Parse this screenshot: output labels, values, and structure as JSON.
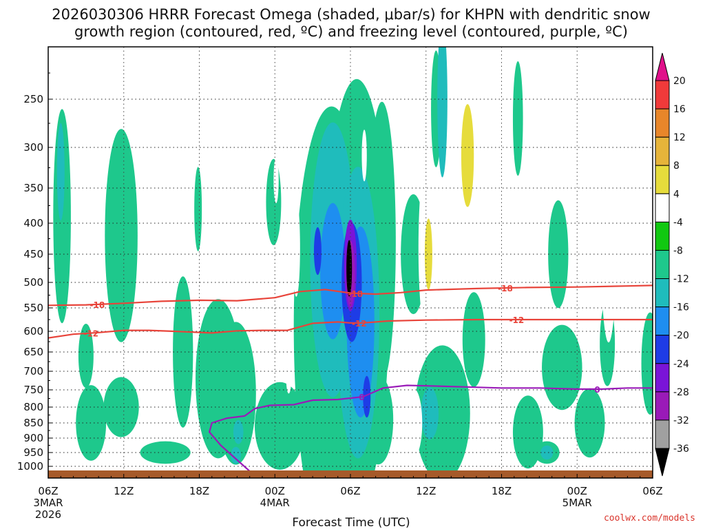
{
  "chart_data": {
    "type": "time-height-cross-section",
    "title_line1": "2026030306 HRRR Forecast Omega (shaded, μbar/s) for KHPN with dendritic snow",
    "title_line2": "growth region (contoured, red, ºC) and freezing level (contoured, purple, ºC)",
    "xlabel": "Forecast Time (UTC)",
    "ylabel": "",
    "credit": "coolwx.com/models",
    "x_ticks": [
      {
        "hour": 0,
        "label": "06Z",
        "date_line1": "3MAR",
        "date_line2": "2026"
      },
      {
        "hour": 6,
        "label": "12Z"
      },
      {
        "hour": 12,
        "label": "18Z"
      },
      {
        "hour": 18,
        "label": "00Z",
        "date_line1": "4MAR"
      },
      {
        "hour": 24,
        "label": "06Z"
      },
      {
        "hour": 30,
        "label": "12Z"
      },
      {
        "hour": 36,
        "label": "18Z"
      },
      {
        "hour": 42,
        "label": "00Z",
        "date_line1": "5MAR"
      },
      {
        "hour": 48,
        "label": "06Z"
      }
    ],
    "x_range_hours": [
      0,
      48
    ],
    "y_ticks_hpa": [
      250,
      300,
      350,
      400,
      450,
      500,
      550,
      600,
      650,
      700,
      750,
      800,
      850,
      900,
      950,
      1000
    ],
    "y_range_hpa": [
      200,
      1025
    ],
    "colorbar": {
      "levels": [
        20,
        16,
        12,
        8,
        4,
        -4,
        -8,
        -12,
        -16,
        -20,
        -24,
        -28,
        -32,
        -36
      ],
      "colors": [
        "#e0108a",
        "#f03a3a",
        "#e8862a",
        "#e6b43a",
        "#e6dc3c",
        "#ffffff",
        "#11c811",
        "#1ec88c",
        "#1fbcbc",
        "#1e8ef0",
        "#1e3ce6",
        "#7a14d8",
        "#9a1ab8",
        "#a0a0a0",
        "#000000"
      ]
    },
    "contours": [
      {
        "name": "-18",
        "color": "#e8443a",
        "label": "-18",
        "points": [
          [
            0,
            545
          ],
          [
            3,
            544
          ],
          [
            6,
            541
          ],
          [
            9,
            537
          ],
          [
            12,
            535
          ],
          [
            15,
            536
          ],
          [
            18,
            530
          ],
          [
            20,
            518
          ],
          [
            22,
            514
          ],
          [
            24,
            521
          ],
          [
            26,
            523
          ],
          [
            28,
            520
          ],
          [
            30,
            515
          ],
          [
            34,
            512
          ],
          [
            38,
            510
          ],
          [
            42,
            509
          ],
          [
            46,
            507
          ],
          [
            48,
            506
          ]
        ],
        "label_hours": [
          3.9,
          24.4,
          36.3
        ]
      },
      {
        "name": "-12",
        "color": "#e8443a",
        "label": "-12",
        "points": [
          [
            0,
            616
          ],
          [
            2,
            607
          ],
          [
            4,
            603
          ],
          [
            6,
            598
          ],
          [
            8,
            598
          ],
          [
            10,
            600
          ],
          [
            13,
            604
          ],
          [
            15,
            599
          ],
          [
            17,
            598
          ],
          [
            19,
            598
          ],
          [
            21,
            583
          ],
          [
            23,
            580
          ],
          [
            24,
            582
          ],
          [
            25,
            582
          ],
          [
            27,
            578
          ],
          [
            30,
            576
          ],
          [
            34,
            575
          ],
          [
            38,
            575
          ],
          [
            42,
            575
          ],
          [
            46,
            575
          ],
          [
            48,
            575
          ]
        ],
        "label_hours": [
          3.4,
          24.7,
          37.2
        ]
      },
      {
        "name": "0",
        "color": "#9a1ab8",
        "label": "0",
        "points": [
          [
            16.4,
            1020
          ],
          [
            15.2,
            985
          ],
          [
            13.7,
            925
          ],
          [
            12.8,
            880
          ],
          [
            13.0,
            850
          ],
          [
            14.2,
            835
          ],
          [
            15.6,
            828
          ],
          [
            16.4,
            805
          ],
          [
            17.6,
            795
          ],
          [
            19.5,
            793
          ],
          [
            21.0,
            780
          ],
          [
            23.0,
            778
          ],
          [
            25.0,
            770
          ],
          [
            26.6,
            745
          ],
          [
            28.5,
            738
          ],
          [
            31,
            740
          ],
          [
            33,
            742
          ],
          [
            36,
            745
          ],
          [
            39,
            745
          ],
          [
            42,
            748
          ],
          [
            44,
            748
          ],
          [
            46,
            745
          ],
          [
            48,
            745
          ]
        ],
        "label_hours": [
          24.9,
          43.6
        ]
      }
    ],
    "omega_regions": [
      {
        "level": "-8",
        "cx": 1.1,
        "cy": 390,
        "rx": 0.7,
        "ry": 150
      },
      {
        "level": "-8",
        "cx": 3.0,
        "cy": 660,
        "rx": 0.6,
        "ry": 80
      },
      {
        "level": "-8",
        "cx": 3.4,
        "cy": 850,
        "rx": 1.2,
        "ry": 120
      },
      {
        "level": "-8",
        "cx": 5.8,
        "cy": 420,
        "rx": 1.3,
        "ry": 160
      },
      {
        "level": "-8",
        "cx": 5.8,
        "cy": 800,
        "rx": 1.4,
        "ry": 90
      },
      {
        "level": "-8",
        "cx": 9.3,
        "cy": 950,
        "rx": 2.0,
        "ry": 40
      },
      {
        "level": "-8",
        "cx": 11.9,
        "cy": 380,
        "rx": 0.3,
        "ry": 60
      },
      {
        "level": "-8",
        "cx": 10.7,
        "cy": 650,
        "rx": 0.8,
        "ry": 180
      },
      {
        "level": "-8",
        "cx": 13.5,
        "cy": 720,
        "rx": 1.8,
        "ry": 210
      },
      {
        "level": "-8",
        "cx": 14.9,
        "cy": 760,
        "rx": 1.6,
        "ry": 200
      },
      {
        "level": "-8",
        "cx": 17.9,
        "cy": 370,
        "rx": 0.6,
        "ry": 60
      },
      {
        "level": "-8",
        "cx": 18.4,
        "cy": 860,
        "rx": 2.0,
        "ry": 140
      },
      {
        "level": "-8",
        "cx": 22.5,
        "cy": 590,
        "rx": 3.0,
        "ry": 410
      },
      {
        "level": "-8",
        "cx": 24.5,
        "cy": 520,
        "rx": 2.6,
        "ry": 360
      },
      {
        "level": "-8",
        "cx": 26.5,
        "cy": 430,
        "rx": 1.1,
        "ry": 210
      },
      {
        "level": "-8",
        "cx": 26.2,
        "cy": 840,
        "rx": 1.2,
        "ry": 140
      },
      {
        "level": "-8",
        "cx": 29.0,
        "cy": 450,
        "rx": 1.0,
        "ry": 100
      },
      {
        "level": "-8",
        "cx": 30.8,
        "cy": 260,
        "rx": 0.4,
        "ry": 60
      },
      {
        "level": "-8",
        "cx": 31.3,
        "cy": 820,
        "rx": 2.2,
        "ry": 200
      },
      {
        "level": "-8",
        "cx": 33.8,
        "cy": 620,
        "rx": 0.9,
        "ry": 110
      },
      {
        "level": "-8",
        "cx": 37.3,
        "cy": 270,
        "rx": 0.4,
        "ry": 60
      },
      {
        "level": "-8",
        "cx": 38.1,
        "cy": 880,
        "rx": 1.2,
        "ry": 120
      },
      {
        "level": "-8",
        "cx": 39.6,
        "cy": 950,
        "rx": 1.0,
        "ry": 40
      },
      {
        "level": "-8",
        "cx": 40.5,
        "cy": 450,
        "rx": 0.8,
        "ry": 90
      },
      {
        "level": "-8",
        "cx": 40.8,
        "cy": 690,
        "rx": 1.6,
        "ry": 110
      },
      {
        "level": "-8",
        "cx": 43.0,
        "cy": 850,
        "rx": 1.2,
        "ry": 110
      },
      {
        "level": "-8",
        "cx": 44.4,
        "cy": 630,
        "rx": 0.6,
        "ry": 100
      },
      {
        "level": "-8",
        "cx": 47.8,
        "cy": 680,
        "rx": 0.7,
        "ry": 130
      },
      {
        "level": "-12",
        "cx": 1.0,
        "cy": 330,
        "rx": 0.3,
        "ry": 60
      },
      {
        "level": "-12",
        "cx": 14.9,
        "cy": 960,
        "rx": 0.4,
        "ry": 30
      },
      {
        "level": "-12",
        "cx": 15.1,
        "cy": 880,
        "rx": 0.4,
        "ry": 40
      },
      {
        "level": "-12",
        "cx": 22.6,
        "cy": 460,
        "rx": 1.8,
        "ry": 220
      },
      {
        "level": "-12",
        "cx": 24.6,
        "cy": 560,
        "rx": 1.7,
        "ry": 280
      },
      {
        "level": "-12",
        "cx": 30.3,
        "cy": 820,
        "rx": 0.7,
        "ry": 80
      },
      {
        "level": "-12",
        "cx": 39.6,
        "cy": 950,
        "rx": 0.5,
        "ry": 25
      },
      {
        "level": "-12",
        "cx": 31.3,
        "cy": 250,
        "rx": 0.4,
        "ry": 80
      },
      {
        "level": "-16",
        "cx": 22.6,
        "cy": 480,
        "rx": 1.0,
        "ry": 120
      },
      {
        "level": "-16",
        "cx": 24.8,
        "cy": 580,
        "rx": 1.1,
        "ry": 200
      },
      {
        "level": "-20",
        "cx": 21.4,
        "cy": 445,
        "rx": 0.3,
        "ry": 40
      },
      {
        "level": "-20",
        "cx": 24.1,
        "cy": 500,
        "rx": 0.8,
        "ry": 110
      },
      {
        "level": "-20",
        "cx": 25.3,
        "cy": 770,
        "rx": 0.3,
        "ry": 60
      },
      {
        "level": "-24",
        "cx": 24.0,
        "cy": 470,
        "rx": 0.5,
        "ry": 80
      },
      {
        "level": "-28",
        "cx": 24.0,
        "cy": 485,
        "rx": 0.35,
        "ry": 60
      },
      {
        "level": "-36",
        "cx": 23.9,
        "cy": 475,
        "rx": 0.22,
        "ry": 50
      },
      {
        "level": "4",
        "cx": 3.0,
        "cy": 380,
        "rx": 0.3,
        "ry": 60
      },
      {
        "level": "4",
        "cx": 18.1,
        "cy": 340,
        "rx": 0.2,
        "ry": 30
      },
      {
        "level": "4",
        "cx": 19.7,
        "cy": 440,
        "rx": 0.3,
        "ry": 80
      },
      {
        "level": "4",
        "cx": 19.1,
        "cy": 720,
        "rx": 0.2,
        "ry": 40
      },
      {
        "level": "4",
        "cx": 25.1,
        "cy": 310,
        "rx": 0.2,
        "ry": 30
      },
      {
        "level": "4",
        "cx": 28.1,
        "cy": 750,
        "rx": 0.3,
        "ry": 60
      },
      {
        "level": "4",
        "cx": 29.0,
        "cy": 850,
        "rx": 0.7,
        "ry": 110
      },
      {
        "level": "4",
        "cx": 30.2,
        "cy": 440,
        "rx": 0.8,
        "ry": 150
      },
      {
        "level": "4",
        "cx": 32.8,
        "cy": 320,
        "rx": 1.2,
        "ry": 80
      },
      {
        "level": "4",
        "cx": 34.2,
        "cy": 330,
        "rx": 1.3,
        "ry": 110
      },
      {
        "level": "4",
        "cx": 35.2,
        "cy": 450,
        "rx": 0.3,
        "ry": 60
      },
      {
        "level": "4",
        "cx": 44.5,
        "cy": 440,
        "rx": 0.6,
        "ry": 150
      },
      {
        "level": "8",
        "cx": 30.2,
        "cy": 450,
        "rx": 0.3,
        "ry": 60
      },
      {
        "level": "8",
        "cx": 33.3,
        "cy": 310,
        "rx": 0.5,
        "ry": 60
      }
    ],
    "ground_color": "#a65a2a"
  }
}
